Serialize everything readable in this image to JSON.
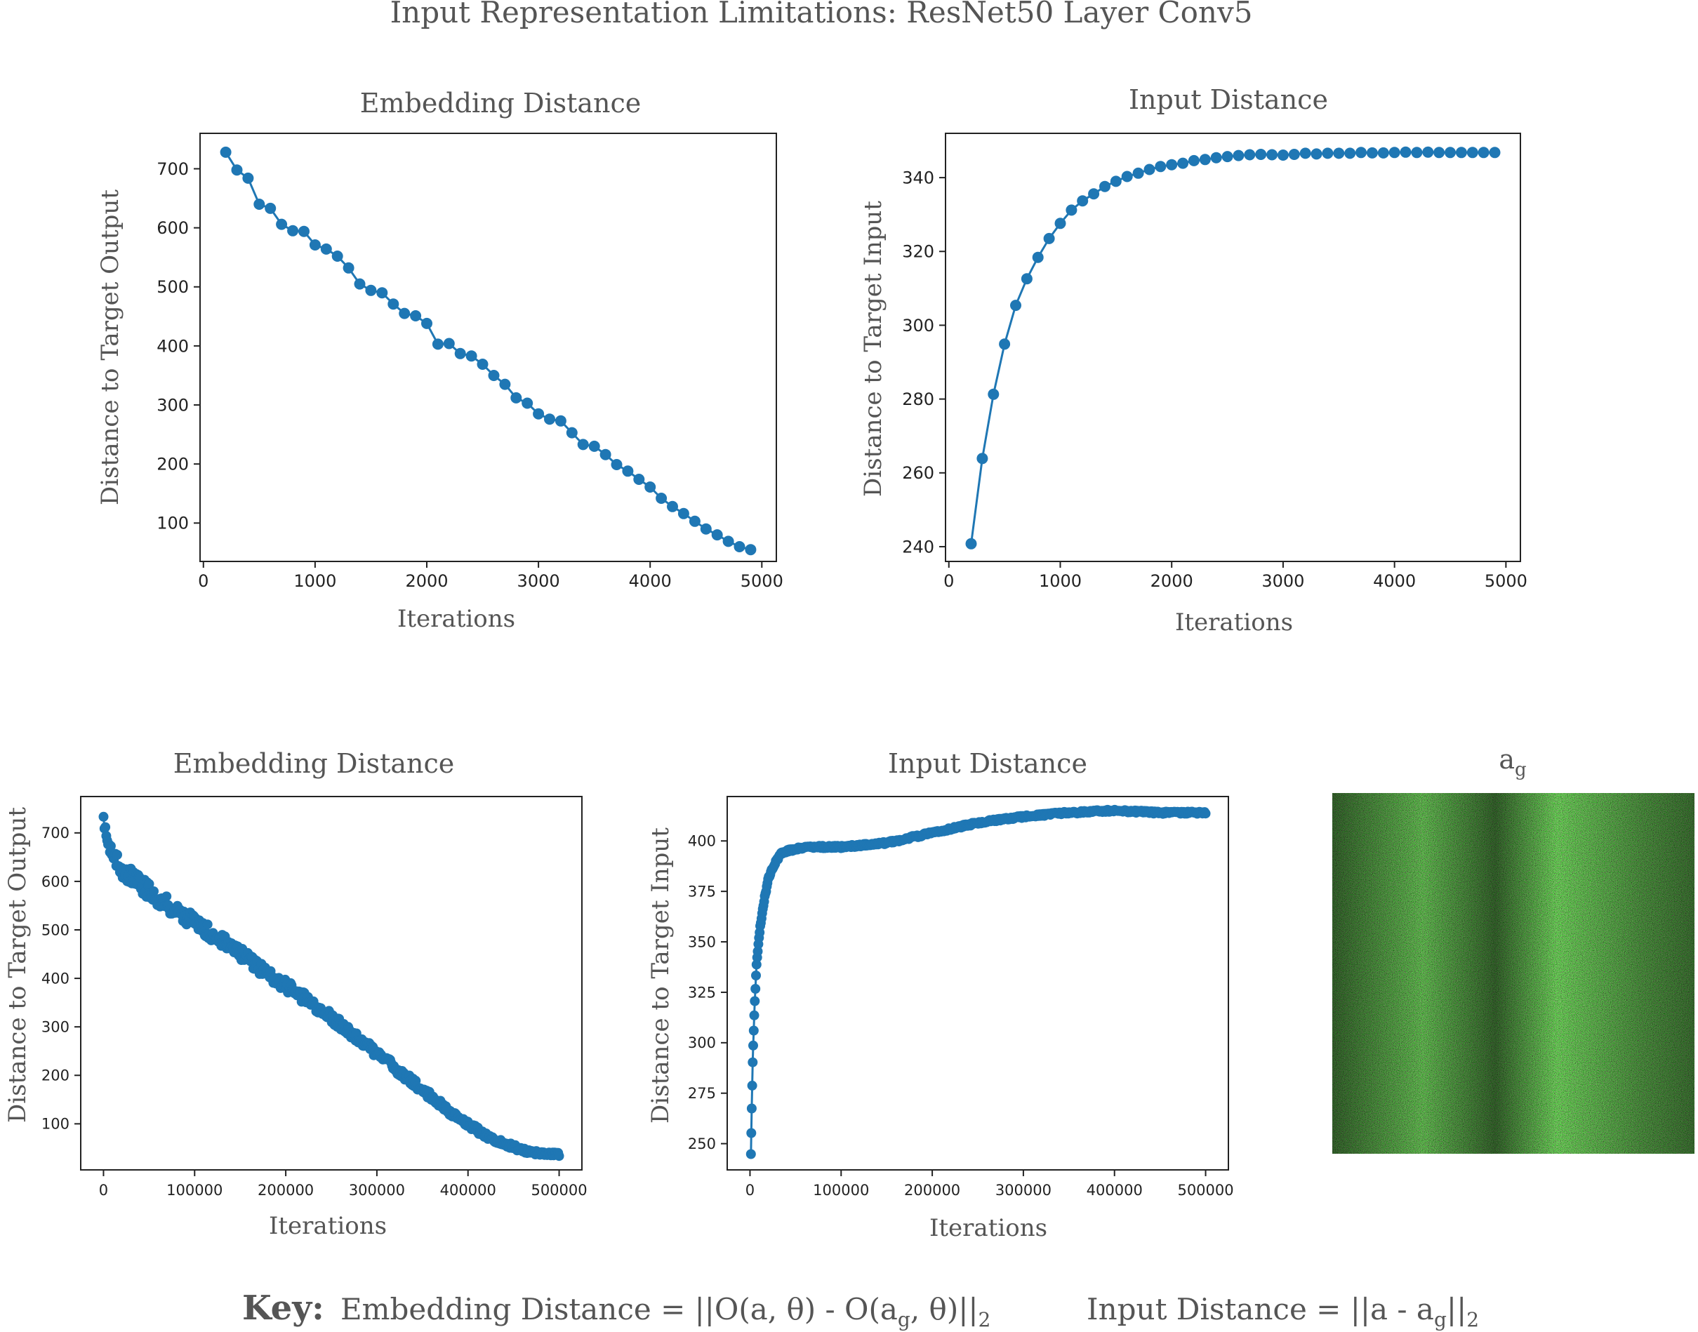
{
  "figure": {
    "title": "Input Representation Limitations: ResNet50 Layer Conv5",
    "image_label": "a",
    "image_label_sub": "g",
    "key": {
      "bold": "Key:",
      "embedding_text": "Embedding Distance = ||O(a, θ) - O(a",
      "embedding_sub": "g",
      "embedding_tail": ", θ)||",
      "embedding_tail_sub": "2",
      "input_text": "Input Distance = ||a - a",
      "input_sub": "g",
      "input_tail": "||",
      "input_tail_sub": "2"
    }
  },
  "colors": {
    "series": "#1f77b4",
    "text": "#555555",
    "axis": "#222222"
  },
  "chart_data": [
    {
      "id": "top-embedding",
      "type": "line",
      "title": "Embedding Distance",
      "xlabel": "Iterations",
      "ylabel": "Distance to Target Output",
      "xlim": [
        -30,
        5130
      ],
      "ylim": [
        35,
        760
      ],
      "xticks": [
        0,
        1000,
        2000,
        3000,
        4000,
        5000
      ],
      "xtick_labels": [
        "0",
        "1000",
        "2000",
        "3000",
        "4000",
        "5000"
      ],
      "yticks": [
        100,
        200,
        300,
        400,
        500,
        600,
        700
      ],
      "ytick_labels": [
        "100",
        "200",
        "300",
        "400",
        "500",
        "600",
        "700"
      ],
      "marker": "circle",
      "grid": false,
      "x": [
        200,
        300,
        400,
        500,
        600,
        700,
        800,
        900,
        1000,
        1100,
        1200,
        1300,
        1400,
        1500,
        1600,
        1700,
        1800,
        1900,
        2000,
        2100,
        2200,
        2300,
        2400,
        2500,
        2600,
        2700,
        2800,
        2900,
        3000,
        3100,
        3200,
        3300,
        3400,
        3500,
        3600,
        3700,
        3800,
        3900,
        4000,
        4100,
        4200,
        4300,
        4400,
        4500,
        4600,
        4700,
        4800,
        4900
      ],
      "y": [
        728,
        698,
        684,
        640,
        633,
        606,
        595,
        594,
        571,
        564,
        552,
        532,
        505,
        494,
        490,
        471,
        455,
        451,
        438,
        403,
        404,
        387,
        383,
        369,
        350,
        335,
        312,
        303,
        285,
        276,
        273,
        253,
        233,
        230,
        216,
        199,
        188,
        174,
        161,
        142,
        128,
        116,
        103,
        90,
        80,
        69,
        60,
        55
      ]
    },
    {
      "id": "top-input",
      "type": "line",
      "title": "Input Distance",
      "xlabel": "Iterations",
      "ylabel": "Distance to Target Input",
      "xlim": [
        -30,
        5130
      ],
      "ylim": [
        236,
        352
      ],
      "xticks": [
        0,
        1000,
        2000,
        3000,
        4000,
        5000
      ],
      "xtick_labels": [
        "0",
        "1000",
        "2000",
        "3000",
        "4000",
        "5000"
      ],
      "yticks": [
        240,
        260,
        280,
        300,
        320,
        340
      ],
      "ytick_labels": [
        "240",
        "260",
        "280",
        "300",
        "320",
        "340"
      ],
      "marker": "circle",
      "grid": false,
      "x": [
        200,
        300,
        400,
        500,
        600,
        700,
        800,
        900,
        1000,
        1100,
        1200,
        1300,
        1400,
        1500,
        1600,
        1700,
        1800,
        1900,
        2000,
        2100,
        2200,
        2300,
        2400,
        2500,
        2600,
        2700,
        2800,
        2900,
        3000,
        3100,
        3200,
        3300,
        3400,
        3500,
        3600,
        3700,
        3800,
        3900,
        4000,
        4100,
        4200,
        4300,
        4400,
        4500,
        4600,
        4700,
        4800,
        4900
      ],
      "y": [
        240.8,
        263.9,
        281.3,
        294.9,
        305.4,
        312.6,
        318.4,
        323.5,
        327.6,
        331.2,
        333.7,
        335.6,
        337.6,
        339.0,
        340.3,
        341.2,
        342.2,
        343.0,
        343.5,
        343.9,
        344.6,
        344.9,
        345.4,
        345.7,
        346.0,
        346.2,
        346.3,
        346.2,
        346.1,
        346.3,
        346.6,
        346.4,
        346.6,
        346.6,
        346.6,
        346.8,
        346.7,
        346.7,
        346.8,
        346.9,
        346.8,
        346.9,
        346.8,
        346.8,
        346.8,
        346.8,
        346.8,
        346.8
      ]
    },
    {
      "id": "bottom-embedding",
      "type": "scatter",
      "title": "Embedding Distance",
      "xlabel": "Iterations",
      "ylabel": "Distance to Target Output",
      "xlim": [
        -25000,
        525000
      ],
      "ylim": [
        5,
        775
      ],
      "xticks": [
        0,
        100000,
        200000,
        300000,
        400000,
        500000
      ],
      "xtick_labels": [
        "0",
        "100000",
        "200000",
        "300000",
        "400000",
        "500000"
      ],
      "yticks": [
        100,
        200,
        300,
        400,
        500,
        600,
        700
      ],
      "ytick_labels": [
        "100",
        "200",
        "300",
        "400",
        "500",
        "600",
        "700"
      ],
      "marker": "circle",
      "grid": false,
      "keypoints_x": [
        0,
        2000,
        5000,
        10000,
        20000,
        40000,
        60000,
        80000,
        100000,
        140000,
        180000,
        220000,
        260000,
        300000,
        340000,
        380000,
        420000,
        460000,
        480000,
        500000
      ],
      "keypoints_y": [
        740,
        710,
        680,
        650,
        625,
        595,
        565,
        540,
        515,
        465,
        410,
        360,
        305,
        245,
        185,
        125,
        75,
        45,
        38,
        37
      ],
      "points": 500,
      "noise_amplitude": 18
    },
    {
      "id": "bottom-input",
      "type": "scatter",
      "title": "Input Distance",
      "xlabel": "Iterations",
      "ylabel": "Distance to Target Input",
      "xlim": [
        -25000,
        525000
      ],
      "ylim": [
        237,
        422
      ],
      "xticks": [
        0,
        100000,
        200000,
        300000,
        400000,
        500000
      ],
      "xtick_labels": [
        "0",
        "100000",
        "200000",
        "300000",
        "400000",
        "500000"
      ],
      "yticks": [
        250,
        275,
        300,
        325,
        350,
        375,
        400
      ],
      "ytick_labels": [
        "250",
        "275",
        "300",
        "325",
        "350",
        "375",
        "400"
      ],
      "marker": "circle",
      "grid": false,
      "keypoints_x": [
        1000,
        2000,
        3000,
        4000,
        5000,
        6000,
        7000,
        8000,
        9000,
        10000,
        12000,
        14000,
        16000,
        18000,
        20000,
        25000,
        30000,
        35000,
        40000,
        50000,
        60000,
        80000,
        100000,
        150000,
        200000,
        250000,
        300000,
        350000,
        400000,
        450000,
        500000
      ],
      "keypoints_y": [
        245,
        270,
        291,
        305,
        318,
        328,
        337,
        343,
        348,
        353,
        360,
        366,
        372,
        376,
        381,
        387,
        391,
        394,
        395,
        396,
        397,
        397,
        397,
        399,
        404,
        409,
        412,
        414,
        415,
        414,
        414
      ],
      "points": 500,
      "noise_amplitude": 0.6
    }
  ]
}
